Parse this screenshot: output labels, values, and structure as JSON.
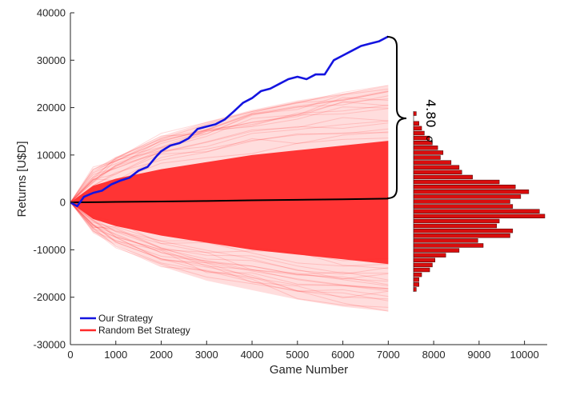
{
  "chart_data": {
    "type": "line",
    "xlabel": "Game Number",
    "ylabel": "Returns [U$D]",
    "xlim": [
      0,
      10500
    ],
    "ylim": [
      -30000,
      40000
    ],
    "xticks": [
      0,
      1000,
      2000,
      3000,
      4000,
      5000,
      6000,
      7000,
      8000,
      9000,
      10000
    ],
    "yticks": [
      -30000,
      -20000,
      -10000,
      0,
      10000,
      20000,
      30000,
      40000
    ],
    "grid": false,
    "legend_position": "bottom-left",
    "colors": {
      "our": "#1414e0",
      "random": "#ff2a2a",
      "mean": "#000000"
    },
    "series": [
      {
        "name": "Our Strategy",
        "x": [
          0,
          150,
          300,
          500,
          700,
          900,
          1100,
          1300,
          1500,
          1700,
          1900,
          2000,
          2200,
          2400,
          2600,
          2800,
          3000,
          3200,
          3400,
          3600,
          3800,
          4000,
          4200,
          4400,
          4600,
          4800,
          5000,
          5200,
          5400,
          5600,
          5800,
          6000,
          6200,
          6400,
          6600,
          6800,
          7000
        ],
        "y": [
          0,
          -800,
          1200,
          2000,
          2500,
          3800,
          4600,
          5200,
          6700,
          7500,
          9800,
          10800,
          12000,
          12500,
          13500,
          15500,
          16000,
          16500,
          17500,
          19200,
          21000,
          22000,
          23500,
          24000,
          25000,
          26000,
          26500,
          26000,
          27000,
          27000,
          30000,
          31000,
          32000,
          33000,
          33500,
          34000,
          35000
        ]
      },
      {
        "name": "Random Bet Strategy",
        "type": "area",
        "x": [
          0,
          500,
          1000,
          2000,
          3000,
          4000,
          5000,
          6000,
          7000
        ],
        "core_upper": [
          0,
          3500,
          5000,
          7000,
          8500,
          10000,
          11000,
          12000,
          13000
        ],
        "core_lower": [
          0,
          -3500,
          -5000,
          -7000,
          -8500,
          -10000,
          -11000,
          -12000,
          -13000
        ],
        "max": [
          0,
          6500,
          9500,
          14000,
          17000,
          19500,
          21500,
          23000,
          24500
        ],
        "min": [
          0,
          -6500,
          -9000,
          -13500,
          -16500,
          -18500,
          -20500,
          -22000,
          -23000
        ]
      },
      {
        "x": [
          0,
          1000,
          2000,
          3000,
          4000,
          5000,
          6000,
          7000
        ],
        "y": [
          0,
          100,
          200,
          300,
          450,
          550,
          650,
          800
        ]
      }
    ],
    "histogram": {
      "values": [
        1,
        0,
        2,
        3,
        4,
        6,
        7,
        9,
        11,
        10,
        14,
        17,
        18,
        22,
        32,
        38,
        43,
        40,
        36,
        37,
        47,
        49,
        32,
        31,
        37,
        36,
        24,
        26,
        17,
        12,
        8,
        7,
        6,
        3,
        2,
        2,
        1
      ]
    },
    "annotation": {
      "text": "4.80",
      "symbol": "σ"
    }
  }
}
